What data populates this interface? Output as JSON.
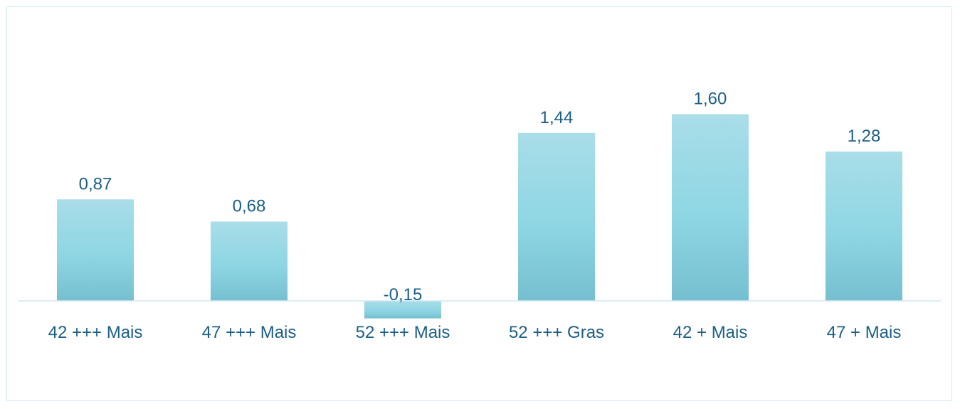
{
  "chart_data": {
    "type": "bar",
    "title": "",
    "xlabel": "",
    "ylabel": "",
    "categories": [
      "42 +++ Mais",
      "47 +++ Mais",
      "52 +++ Mais",
      "52 +++ Gras",
      "42 + Mais",
      "47 + Mais"
    ],
    "values": [
      0.87,
      0.68,
      -0.15,
      1.44,
      1.6,
      1.28
    ],
    "value_labels": [
      "0,87",
      "0,68",
      "-0,15",
      "1,44",
      "1,60",
      "1,28"
    ],
    "ylim": [
      -0.15,
      1.6
    ],
    "grid": false,
    "legend": "none",
    "colors": {
      "bar_top": "#a9dde9",
      "bar_mid": "#8ed6e3",
      "bar_bottom": "#76bfd0",
      "text": "#1b5f86",
      "axis": "#cfe9f2"
    }
  }
}
